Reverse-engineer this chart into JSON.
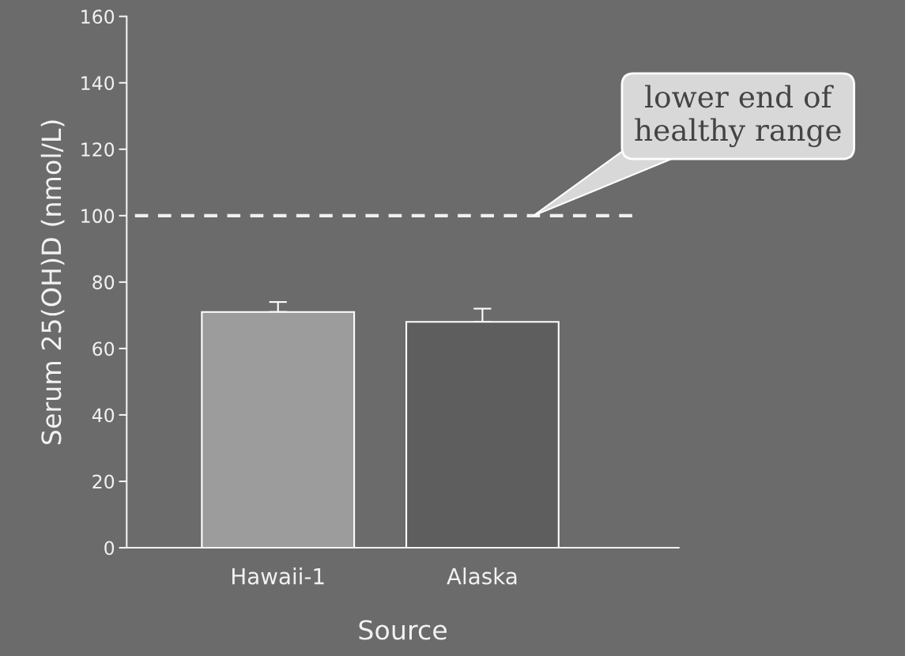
{
  "chart_data": {
    "type": "bar",
    "xlabel": "Source",
    "ylabel": "Serum 25(OH)D (nmol/L)",
    "categories": [
      "Hawaii-1",
      "Alaska"
    ],
    "values": [
      71,
      68
    ],
    "colors": [
      "#9c9c9c",
      "#5e5e5e"
    ],
    "errors": [
      3,
      4
    ],
    "ylim": [
      0,
      160
    ],
    "yticks": [
      0,
      20,
      40,
      60,
      80,
      100,
      120,
      140,
      160
    ],
    "grid": false,
    "legend": false,
    "ref_lines": [
      {
        "axis": "y",
        "value": 100,
        "label": "lower end of\nhealthy range",
        "color": "#f0f0f0",
        "line_style": "dashed"
      }
    ]
  }
}
